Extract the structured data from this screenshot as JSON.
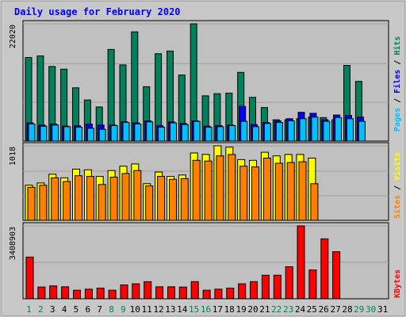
{
  "title": "Daily usage for February 2020",
  "colors": {
    "frame_bg": "#c8c8c8",
    "plot_bg": "#c0c0c0",
    "grid": "#a0a0a0",
    "title": "#0000ff",
    "hits": "#00805c",
    "files": "#0000ff",
    "pages": "#00c0ff",
    "visits": "#ffff00",
    "sites": "#ff8000",
    "kbytes": "#ff0000",
    "weekend_day": "#00805c",
    "weekday": "#000000"
  },
  "chart_data": [
    {
      "type": "bar",
      "name": "hits-files-pages",
      "categories": [
        "1",
        "2",
        "3",
        "4",
        "5",
        "6",
        "7",
        "8",
        "9",
        "10",
        "11",
        "12",
        "13",
        "14",
        "15",
        "16",
        "17",
        "18",
        "19",
        "20",
        "21",
        "22",
        "23",
        "24",
        "25",
        "26",
        "27",
        "28",
        "29",
        "30",
        "31"
      ],
      "y_tick_label": "22020",
      "ylim": [
        0,
        22020
      ],
      "grid": true,
      "series": [
        {
          "name": "Hits",
          "color": "#00805c",
          "values": [
            15700,
            16000,
            14000,
            13500,
            10000,
            7700,
            6400,
            17200,
            14300,
            20500,
            10200,
            16400,
            16900,
            12400,
            22020,
            8500,
            8900,
            9000,
            12900,
            8200,
            6300,
            4000,
            4000,
            4200,
            4500,
            4400,
            4000,
            14200,
            11200,
            null,
            null
          ]
        },
        {
          "name": "Files",
          "color": "#0000ff",
          "values": [
            3400,
            3000,
            3200,
            2800,
            2900,
            3200,
            3000,
            3000,
            3600,
            3400,
            3800,
            2900,
            3600,
            3300,
            3800,
            2800,
            2900,
            3000,
            6500,
            3100,
            3500,
            3800,
            4200,
            5400,
            5200,
            4000,
            4900,
            4800,
            4500,
            null,
            null
          ]
        },
        {
          "name": "Pages",
          "color": "#00c0ff",
          "values": [
            3200,
            2800,
            3000,
            2700,
            2600,
            2400,
            2200,
            2900,
            3500,
            3200,
            3600,
            2600,
            3400,
            3100,
            3700,
            2600,
            2700,
            2900,
            3700,
            2700,
            3300,
            3500,
            3800,
            4200,
            4500,
            3700,
            4400,
            4200,
            3700,
            null,
            null
          ]
        }
      ]
    },
    {
      "type": "bar",
      "name": "visits-sites",
      "categories": [
        "1",
        "2",
        "3",
        "4",
        "5",
        "6",
        "7",
        "8",
        "9",
        "10",
        "11",
        "12",
        "13",
        "14",
        "15",
        "16",
        "17",
        "18",
        "19",
        "20",
        "21",
        "22",
        "23",
        "24",
        "25",
        "26",
        "27",
        "28",
        "29",
        "30",
        "31"
      ],
      "y_tick_label": "1018",
      "ylim": [
        0,
        1018
      ],
      "grid": true,
      "series": [
        {
          "name": "Visits",
          "color": "#ffff00",
          "values": [
            480,
            510,
            630,
            580,
            700,
            690,
            600,
            680,
            740,
            770,
            500,
            660,
            600,
            620,
            920,
            900,
            1018,
            1000,
            830,
            820,
            930,
            880,
            900,
            900,
            850,
            null,
            null,
            null,
            null,
            null,
            null
          ]
        },
        {
          "name": "Sites",
          "color": "#ff8000",
          "values": [
            450,
            480,
            580,
            530,
            610,
            600,
            490,
            590,
            640,
            680,
            470,
            600,
            560,
            570,
            820,
            810,
            880,
            900,
            740,
            730,
            850,
            780,
            790,
            800,
            500,
            null,
            null,
            null,
            null,
            null,
            null
          ]
        }
      ]
    },
    {
      "type": "bar",
      "name": "kbytes",
      "categories": [
        "1",
        "2",
        "3",
        "4",
        "5",
        "6",
        "7",
        "8",
        "9",
        "10",
        "11",
        "12",
        "13",
        "14",
        "15",
        "16",
        "17",
        "18",
        "19",
        "20",
        "21",
        "22",
        "23",
        "24",
        "25",
        "26",
        "27",
        "28",
        "29",
        "30",
        "31"
      ],
      "y_tick_label": "3408903",
      "ylim": [
        0,
        3408903
      ],
      "grid": true,
      "series": [
        {
          "name": "KBytes",
          "color": "#ff0000",
          "values": [
            1950000,
            550000,
            600000,
            560000,
            400000,
            450000,
            500000,
            400000,
            650000,
            700000,
            800000,
            560000,
            560000,
            550000,
            800000,
            400000,
            450000,
            500000,
            700000,
            800000,
            1100000,
            1100000,
            1500000,
            3408903,
            1350000,
            2800000,
            2200000,
            null,
            null,
            null,
            null
          ]
        }
      ]
    }
  ],
  "legend": {
    "top_right": [
      {
        "label": "Hits",
        "color": "#00805c"
      },
      {
        "label": "Files",
        "color": "#0000ff"
      },
      {
        "label": "Pages",
        "color": "#00c0ff"
      }
    ],
    "mid_right": [
      {
        "label": "Visits",
        "color": "#ffff00"
      },
      {
        "label": "Sites",
        "color": "#ff8000"
      }
    ],
    "bottom_right": [
      {
        "label": "KBytes",
        "color": "#ff0000"
      }
    ],
    "separator": "/"
  },
  "x_axis": {
    "labels": [
      "1",
      "2",
      "3",
      "4",
      "5",
      "6",
      "7",
      "8",
      "9",
      "10",
      "11",
      "12",
      "13",
      "14",
      "15",
      "16",
      "17",
      "18",
      "19",
      "20",
      "21",
      "22",
      "23",
      "24",
      "25",
      "26",
      "27",
      "28",
      "29",
      "30",
      "31"
    ],
    "weekend_days": [
      1,
      2,
      8,
      9,
      15,
      16,
      22,
      23,
      29,
      30
    ]
  }
}
